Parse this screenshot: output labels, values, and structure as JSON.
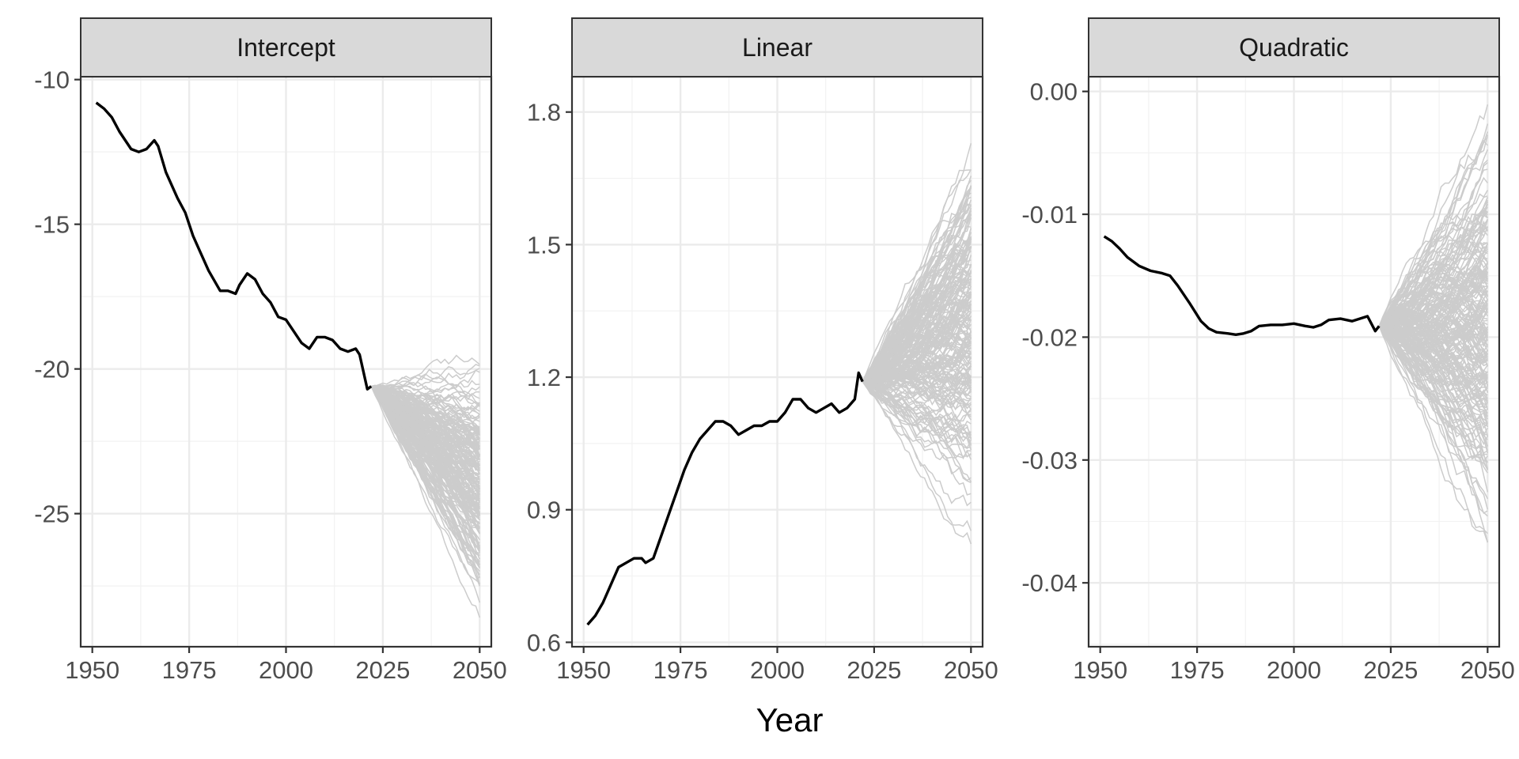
{
  "figure": {
    "xlabel": "Year"
  },
  "chart_data": [
    {
      "type": "line",
      "facet": "Intercept",
      "xlim": [
        1947,
        2053
      ],
      "ylim": [
        -29.6,
        -9.9
      ],
      "x_ticks": [
        1950,
        1975,
        2000,
        2025,
        2050
      ],
      "x_tick_labels": [
        "1950",
        "1975",
        "2000",
        "2025",
        "2050"
      ],
      "y_ticks": [
        -10,
        -15,
        -20,
        -25
      ],
      "y_tick_labels": [
        "-10",
        "-15",
        "-20",
        "-25"
      ],
      "observed": {
        "color": "#000000",
        "points": [
          [
            1951,
            -10.8
          ],
          [
            1953,
            -11.0
          ],
          [
            1955,
            -11.3
          ],
          [
            1957,
            -11.8
          ],
          [
            1960,
            -12.4
          ],
          [
            1962,
            -12.5
          ],
          [
            1964,
            -12.4
          ],
          [
            1966,
            -12.1
          ],
          [
            1967,
            -12.3
          ],
          [
            1969,
            -13.2
          ],
          [
            1972,
            -14.1
          ],
          [
            1974,
            -14.6
          ],
          [
            1976,
            -15.4
          ],
          [
            1978,
            -16.0
          ],
          [
            1980,
            -16.6
          ],
          [
            1983,
            -17.3
          ],
          [
            1985,
            -17.3
          ],
          [
            1987,
            -17.4
          ],
          [
            1988,
            -17.1
          ],
          [
            1990,
            -16.7
          ],
          [
            1992,
            -16.9
          ],
          [
            1994,
            -17.4
          ],
          [
            1996,
            -17.7
          ],
          [
            1998,
            -18.2
          ],
          [
            2000,
            -18.3
          ],
          [
            2002,
            -18.7
          ],
          [
            2004,
            -19.1
          ],
          [
            2006,
            -19.3
          ],
          [
            2008,
            -18.9
          ],
          [
            2010,
            -18.9
          ],
          [
            2012,
            -19.0
          ],
          [
            2014,
            -19.3
          ],
          [
            2016,
            -19.4
          ],
          [
            2018,
            -19.3
          ],
          [
            2019,
            -19.5
          ],
          [
            2020,
            -20.1
          ],
          [
            2021,
            -20.7
          ],
          [
            2022,
            -20.6
          ]
        ]
      },
      "simulations": {
        "color": "#cccccc",
        "count": 200,
        "start": [
          2022,
          -20.6
        ],
        "end_center": -24.0,
        "end_spread": [
          -29.2,
          -19.0
        ],
        "x_end": 2050
      }
    },
    {
      "type": "line",
      "facet": "Linear",
      "xlim": [
        1947,
        2053
      ],
      "ylim": [
        0.59,
        1.88
      ],
      "x_ticks": [
        1950,
        1975,
        2000,
        2025,
        2050
      ],
      "x_tick_labels": [
        "1950",
        "1975",
        "2000",
        "2025",
        "2050"
      ],
      "y_ticks": [
        0.6,
        0.9,
        1.2,
        1.5,
        1.8
      ],
      "y_tick_labels": [
        "0.6",
        "0.9",
        "1.2",
        "1.5",
        "1.8"
      ],
      "observed": {
        "color": "#000000",
        "points": [
          [
            1951,
            0.64
          ],
          [
            1953,
            0.66
          ],
          [
            1955,
            0.69
          ],
          [
            1957,
            0.73
          ],
          [
            1959,
            0.77
          ],
          [
            1961,
            0.78
          ],
          [
            1963,
            0.79
          ],
          [
            1965,
            0.79
          ],
          [
            1966,
            0.78
          ],
          [
            1968,
            0.79
          ],
          [
            1970,
            0.84
          ],
          [
            1972,
            0.89
          ],
          [
            1974,
            0.94
          ],
          [
            1976,
            0.99
          ],
          [
            1978,
            1.03
          ],
          [
            1980,
            1.06
          ],
          [
            1982,
            1.08
          ],
          [
            1984,
            1.1
          ],
          [
            1986,
            1.1
          ],
          [
            1988,
            1.09
          ],
          [
            1990,
            1.07
          ],
          [
            1992,
            1.08
          ],
          [
            1994,
            1.09
          ],
          [
            1996,
            1.09
          ],
          [
            1998,
            1.1
          ],
          [
            2000,
            1.1
          ],
          [
            2002,
            1.12
          ],
          [
            2004,
            1.15
          ],
          [
            2006,
            1.15
          ],
          [
            2008,
            1.13
          ],
          [
            2010,
            1.12
          ],
          [
            2012,
            1.13
          ],
          [
            2014,
            1.14
          ],
          [
            2016,
            1.12
          ],
          [
            2018,
            1.13
          ],
          [
            2020,
            1.15
          ],
          [
            2021,
            1.21
          ],
          [
            2022,
            1.19
          ]
        ]
      },
      "simulations": {
        "color": "#cccccc",
        "count": 200,
        "start": [
          2022,
          1.19
        ],
        "end_center": 1.3,
        "end_spread": [
          0.82,
          1.82
        ],
        "x_end": 2050
      }
    },
    {
      "type": "line",
      "facet": "Quadratic",
      "xlim": [
        1947,
        2053
      ],
      "ylim": [
        -0.0452,
        0.0012
      ],
      "x_ticks": [
        1950,
        1975,
        2000,
        2025,
        2050
      ],
      "x_tick_labels": [
        "1950",
        "1975",
        "2000",
        "2025",
        "2050"
      ],
      "y_ticks": [
        0.0,
        -0.01,
        -0.02,
        -0.03,
        -0.04
      ],
      "y_tick_labels": [
        "0.00",
        "-0.01",
        "-0.02",
        "-0.03",
        "-0.04"
      ],
      "observed": {
        "color": "#000000",
        "points": [
          [
            1951,
            -0.0118
          ],
          [
            1953,
            -0.0122
          ],
          [
            1955,
            -0.0128
          ],
          [
            1957,
            -0.0135
          ],
          [
            1960,
            -0.0142
          ],
          [
            1963,
            -0.0146
          ],
          [
            1966,
            -0.0148
          ],
          [
            1968,
            -0.015
          ],
          [
            1970,
            -0.0158
          ],
          [
            1973,
            -0.0172
          ],
          [
            1976,
            -0.0187
          ],
          [
            1978,
            -0.0193
          ],
          [
            1980,
            -0.0196
          ],
          [
            1983,
            -0.0197
          ],
          [
            1985,
            -0.0198
          ],
          [
            1987,
            -0.0197
          ],
          [
            1989,
            -0.0195
          ],
          [
            1991,
            -0.0191
          ],
          [
            1994,
            -0.019
          ],
          [
            1997,
            -0.019
          ],
          [
            2000,
            -0.0189
          ],
          [
            2003,
            -0.0191
          ],
          [
            2005,
            -0.0192
          ],
          [
            2007,
            -0.019
          ],
          [
            2009,
            -0.0186
          ],
          [
            2012,
            -0.0185
          ],
          [
            2015,
            -0.0187
          ],
          [
            2017,
            -0.0185
          ],
          [
            2019,
            -0.0183
          ],
          [
            2021,
            -0.0195
          ],
          [
            2022,
            -0.0191
          ]
        ]
      },
      "simulations": {
        "color": "#cccccc",
        "count": 200,
        "start": [
          2022,
          -0.0191
        ],
        "end_center": -0.02,
        "end_spread": [
          -0.0432,
          -0.0015
        ],
        "x_end": 2050
      }
    }
  ]
}
